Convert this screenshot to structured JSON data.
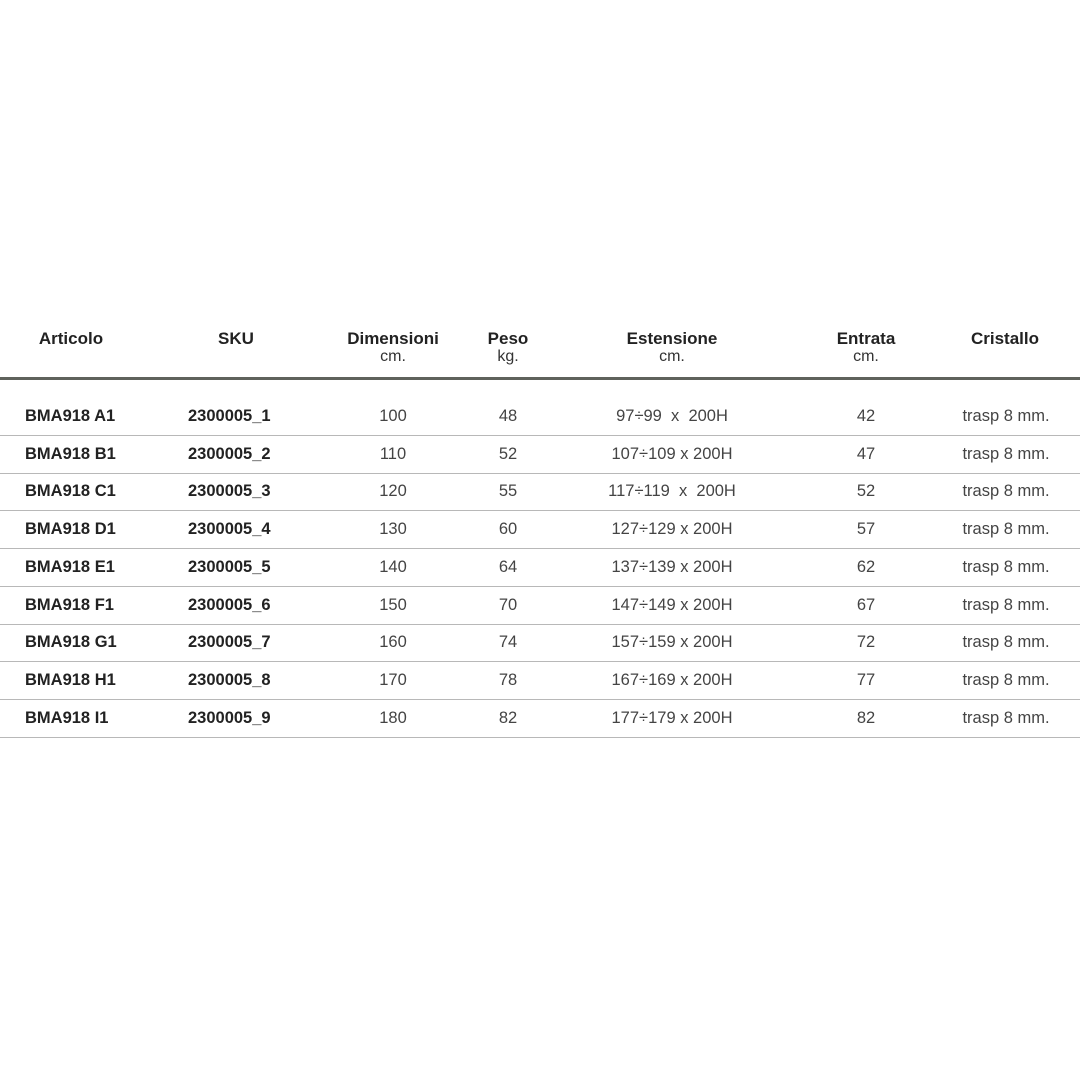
{
  "headers": [
    {
      "title": "Articolo",
      "unit": ""
    },
    {
      "title": "SKU",
      "unit": ""
    },
    {
      "title": "Dimensioni",
      "unit": "cm."
    },
    {
      "title": "Peso",
      "unit": "kg."
    },
    {
      "title": "Estensione",
      "unit": "cm."
    },
    {
      "title": "Entrata",
      "unit": "cm."
    },
    {
      "title": "Cristallo",
      "unit": ""
    }
  ],
  "rows": [
    [
      "BMA918 A1",
      "2300005_1",
      "100",
      "48",
      "97÷99  x  200H",
      "42",
      "trasp 8 mm."
    ],
    [
      "BMA918 B1",
      "2300005_2",
      "110",
      "52",
      "107÷109 x 200H",
      "47",
      "trasp 8 mm."
    ],
    [
      "BMA918 C1",
      "2300005_3",
      "120",
      "55",
      "117÷119  x  200H",
      "52",
      "trasp 8 mm."
    ],
    [
      "BMA918 D1",
      "2300005_4",
      "130",
      "60",
      "127÷129 x 200H",
      "57",
      "trasp 8 mm."
    ],
    [
      "BMA918 E1",
      "2300005_5",
      "140",
      "64",
      "137÷139 x 200H",
      "62",
      "trasp 8 mm."
    ],
    [
      "BMA918 F1",
      "2300005_6",
      "150",
      "70",
      "147÷149 x 200H",
      "67",
      "trasp 8 mm."
    ],
    [
      "BMA918 G1",
      "2300005_7",
      "160",
      "74",
      "157÷159 x 200H",
      "72",
      "trasp 8 mm."
    ],
    [
      "BMA918 H1",
      "2300005_8",
      "170",
      "78",
      "167÷169 x 200H",
      "77",
      "trasp 8 mm."
    ],
    [
      "BMA918 I1",
      "2300005_9",
      "180",
      "82",
      "177÷179 x 200H",
      "82",
      "trasp 8 mm."
    ]
  ]
}
